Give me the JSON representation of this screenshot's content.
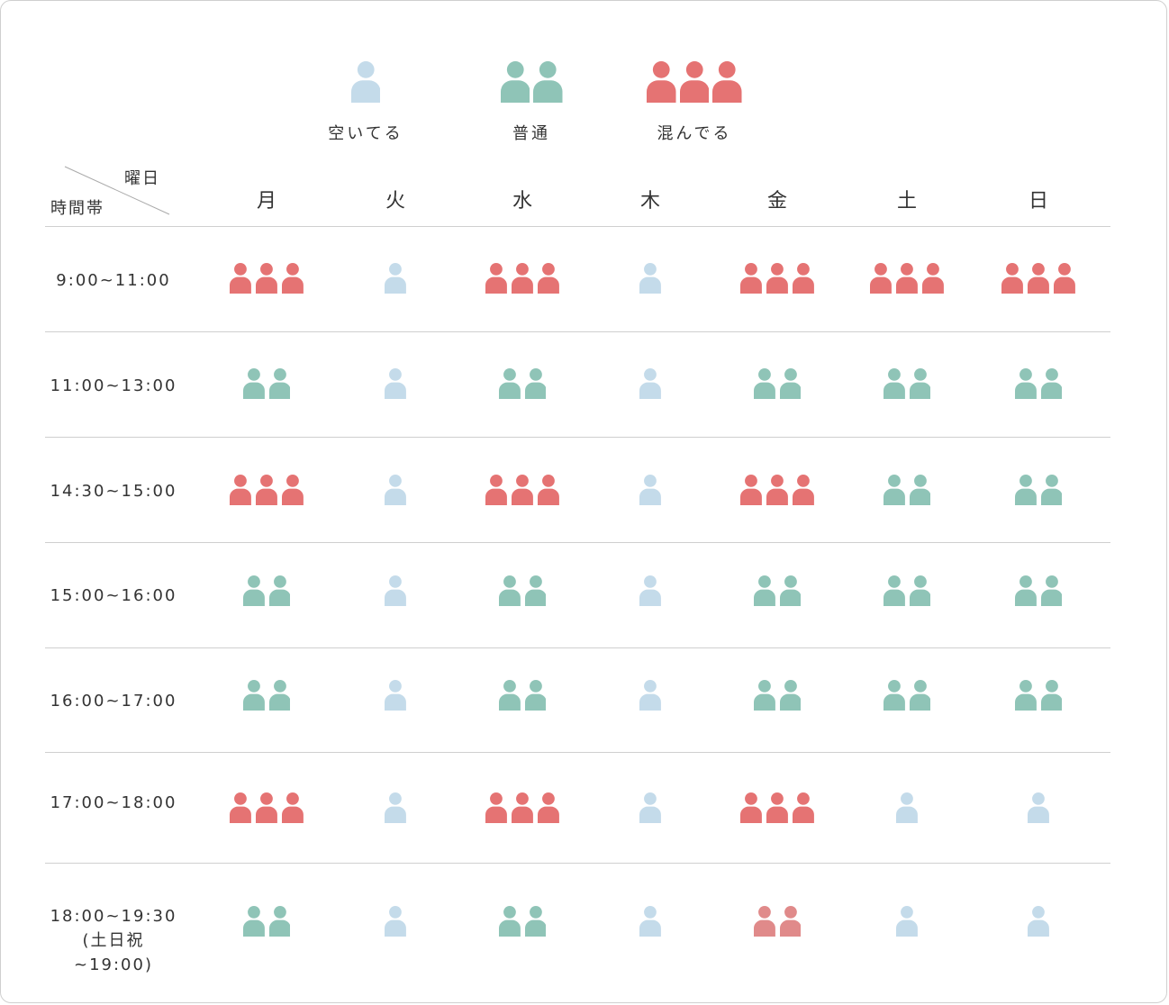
{
  "colors": {
    "empty": "#c4dbea",
    "normal": "#8fc4b7",
    "crowded": "#e57373",
    "crowded_faint": "#e08a8a",
    "border": "#cfcfcf",
    "text": "#333333"
  },
  "legend": [
    {
      "level": "empty",
      "label": "空いてる"
    },
    {
      "level": "normal",
      "label": "普通"
    },
    {
      "level": "crowded",
      "label": "混んでる"
    }
  ],
  "header": {
    "corner_day_label": "曜日",
    "corner_time_label": "時間帯",
    "days": [
      "月",
      "火",
      "水",
      "木",
      "金",
      "土",
      "日"
    ]
  },
  "rows": [
    {
      "time": "9:00~11:00",
      "levels": [
        "crowded",
        "empty",
        "crowded",
        "empty",
        "crowded",
        "crowded",
        "crowded"
      ]
    },
    {
      "time": "11:00~13:00",
      "levels": [
        "normal",
        "empty",
        "normal",
        "empty",
        "normal",
        "normal",
        "normal"
      ]
    },
    {
      "time": "14:30~15:00",
      "levels": [
        "crowded",
        "empty",
        "crowded",
        "empty",
        "crowded",
        "normal",
        "normal"
      ]
    },
    {
      "time": "15:00~16:00",
      "levels": [
        "normal",
        "empty",
        "normal",
        "empty",
        "normal",
        "normal",
        "normal"
      ]
    },
    {
      "time": "16:00~17:00",
      "levels": [
        "normal",
        "empty",
        "normal",
        "empty",
        "normal",
        "normal",
        "normal"
      ]
    },
    {
      "time": "17:00~18:00",
      "levels": [
        "crowded",
        "empty",
        "crowded",
        "empty",
        "crowded",
        "empty",
        "empty"
      ]
    },
    {
      "time": "18:00~19:30",
      "time_note": "(土日祝 ~19:00)",
      "levels": [
        "normal",
        "empty",
        "normal",
        "empty",
        "crowded_faint",
        "empty",
        "empty"
      ]
    }
  ]
}
